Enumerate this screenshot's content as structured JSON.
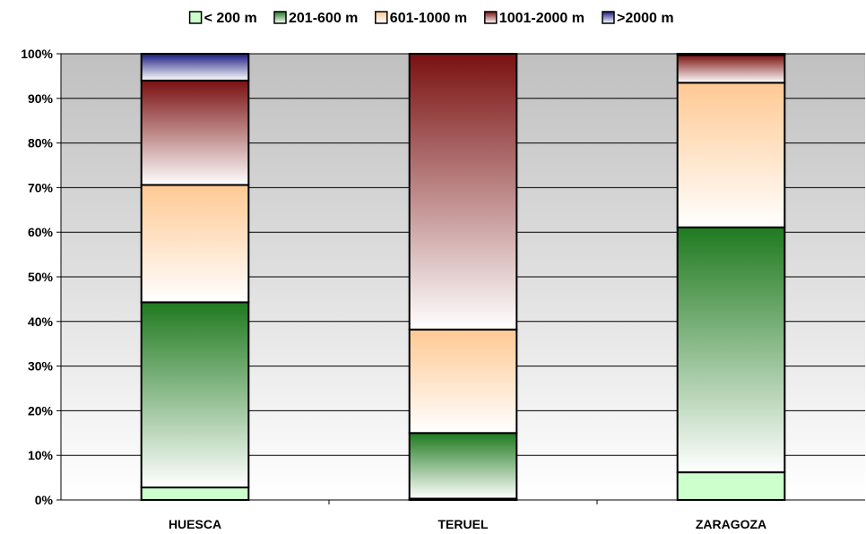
{
  "chart_data": {
    "type": "bar",
    "stacked": true,
    "percent": true,
    "categories": [
      "HUESCA",
      "TERUEL",
      "ZARAGOZA"
    ],
    "ylim": [
      0,
      100
    ],
    "yticks": [
      "0%",
      "10%",
      "20%",
      "30%",
      "40%",
      "50%",
      "60%",
      "70%",
      "80%",
      "90%",
      "100%"
    ],
    "grid": true,
    "legend_position": "top",
    "series": [
      {
        "name": "< 200 m",
        "values": [
          2.8,
          0.3,
          6.2
        ],
        "color": "#ccffcc",
        "gradient": false
      },
      {
        "name": "201-600 m",
        "values": [
          41.5,
          14.7,
          54.9
        ],
        "color": "#1f7a1f",
        "gradient": true
      },
      {
        "name": "601-1000 m",
        "values": [
          26.3,
          23.2,
          32.4
        ],
        "color": "#ffc993",
        "gradient": true
      },
      {
        "name": "1001-2000 m",
        "values": [
          23.4,
          61.8,
          6.2
        ],
        "color": "#7a1010",
        "gradient": true
      },
      {
        "name": ">2000 m",
        "values": [
          6.0,
          0.0,
          0.3
        ],
        "color": "#1a1a80",
        "gradient": true
      }
    ]
  }
}
